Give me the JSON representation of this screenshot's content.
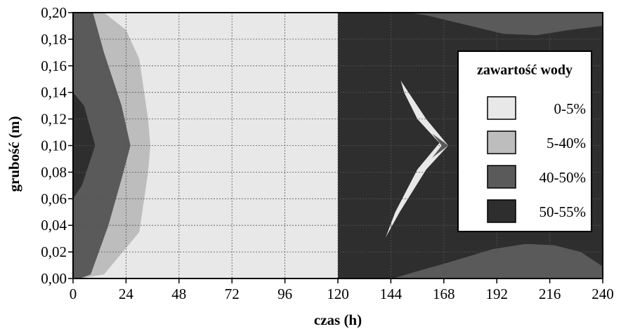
{
  "chart_data": {
    "type": "contour",
    "xlabel": "czas (h)",
    "ylabel": "grubość (m)",
    "xlim": [
      0,
      240
    ],
    "ylim": [
      0,
      0.2
    ],
    "x_ticks": [
      "0",
      "24",
      "48",
      "72",
      "96",
      "120",
      "144",
      "168",
      "192",
      "216",
      "240"
    ],
    "y_ticks": [
      "0,00",
      "0,02",
      "0,04",
      "0,06",
      "0,08",
      "0,10",
      "0,12",
      "0,14",
      "0,16",
      "0,18",
      "0,20"
    ],
    "x_tick_values": [
      0,
      24,
      48,
      72,
      96,
      120,
      144,
      168,
      192,
      216,
      240
    ],
    "y_tick_values": [
      0,
      0.02,
      0.04,
      0.06,
      0.08,
      0.1,
      0.12,
      0.14,
      0.16,
      0.18,
      0.2
    ],
    "grid": true,
    "legend_position": "right",
    "legend": {
      "title": "zawartość wody",
      "items": [
        {
          "label": "0-5%",
          "color": "#e8e8e8"
        },
        {
          "label": "5-40%",
          "color": "#bdbdbd"
        },
        {
          "label": "40-50%",
          "color": "#5a5a5a"
        },
        {
          "label": "50-55%",
          "color": "#2e2e2e"
        }
      ]
    },
    "regions": [
      {
        "band": "40-50%",
        "points": [
          [
            0,
            0
          ],
          [
            128,
            0
          ],
          [
            130,
            0.01
          ],
          [
            136,
            0.03
          ],
          [
            144,
            0.05
          ],
          [
            152,
            0.07
          ],
          [
            162,
            0.09
          ],
          [
            170,
            0.1
          ],
          [
            162,
            0.11
          ],
          [
            152,
            0.13
          ],
          [
            142,
            0.16
          ],
          [
            136,
            0.18
          ],
          [
            134,
            0.2
          ],
          [
            0,
            0.2
          ]
        ]
      },
      {
        "band": "0-5%",
        "points": [
          [
            3,
            0
          ],
          [
            125,
            0
          ],
          [
            128,
            0.012
          ],
          [
            136,
            0.035
          ],
          [
            150,
            0.06
          ],
          [
            160,
            0.085
          ],
          [
            167,
            0.1
          ],
          [
            160,
            0.115
          ],
          [
            150,
            0.135
          ],
          [
            140,
            0.155
          ],
          [
            132,
            0.18
          ],
          [
            128,
            0.2
          ],
          [
            3,
            0.2
          ]
        ]
      },
      {
        "band": "5-40%",
        "points": [
          [
            3,
            0
          ],
          [
            14,
            0.003
          ],
          [
            30,
            0.035
          ],
          [
            34,
            0.08
          ],
          [
            35,
            0.1
          ],
          [
            34,
            0.12
          ],
          [
            30,
            0.165
          ],
          [
            24,
            0.187
          ],
          [
            14,
            0.2
          ],
          [
            3,
            0.2
          ]
        ]
      },
      {
        "band": "40-50%",
        "points": [
          [
            0,
            0
          ],
          [
            3,
            0
          ],
          [
            8,
            0.003
          ],
          [
            16,
            0.04
          ],
          [
            22,
            0.075
          ],
          [
            26,
            0.1
          ],
          [
            22,
            0.13
          ],
          [
            14,
            0.17
          ],
          [
            9,
            0.2
          ],
          [
            0,
            0.2
          ]
        ]
      },
      {
        "band": "50-55%",
        "points": [
          [
            0,
            0.06
          ],
          [
            4,
            0.07
          ],
          [
            10,
            0.1
          ],
          [
            5,
            0.13
          ],
          [
            0,
            0.14
          ]
        ]
      },
      {
        "band": "50-55%",
        "points": [
          [
            120,
            0.2
          ],
          [
            140,
            0.2
          ],
          [
            138,
            0.19
          ],
          [
            140,
            0.18
          ],
          [
            146,
            0.163
          ],
          [
            150,
            0.14
          ],
          [
            156,
            0.12
          ],
          [
            166,
            0.102
          ],
          [
            156,
            0.082
          ],
          [
            146,
            0.05
          ],
          [
            138,
            0.015
          ],
          [
            136,
            0.0
          ],
          [
            120,
            0.0
          ]
        ]
      },
      {
        "band": "50-55%",
        "points": [
          [
            128,
            0
          ],
          [
            240,
            0
          ],
          [
            240,
            0.2
          ],
          [
            134,
            0.2
          ],
          [
            140,
            0.18
          ],
          [
            148,
            0.15
          ],
          [
            160,
            0.12
          ],
          [
            170,
            0.1
          ],
          [
            160,
            0.082
          ],
          [
            148,
            0.05
          ],
          [
            138,
            0.02
          ],
          [
            128,
            0
          ]
        ]
      },
      {
        "band": "40-50%",
        "points": [
          [
            152,
            0.2
          ],
          [
            240,
            0.2
          ],
          [
            240,
            0.19
          ],
          [
            225,
            0.187
          ],
          [
            210,
            0.183
          ],
          [
            195,
            0.184
          ],
          [
            180,
            0.19
          ],
          [
            160,
            0.198
          ]
        ]
      },
      {
        "band": "40-50%",
        "points": [
          [
            145,
            0.0
          ],
          [
            240,
            0.0
          ],
          [
            240,
            0.009
          ],
          [
            230,
            0.02
          ],
          [
            218,
            0.025
          ],
          [
            205,
            0.026
          ],
          [
            190,
            0.022
          ],
          [
            170,
            0.012
          ],
          [
            155,
            0.005
          ]
        ]
      }
    ]
  }
}
